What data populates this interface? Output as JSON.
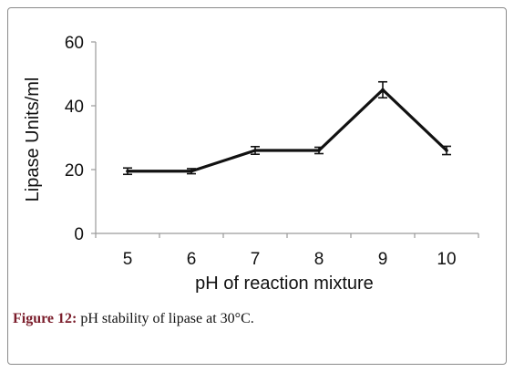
{
  "chart_data": {
    "type": "line",
    "x": [
      5,
      6,
      7,
      8,
      9,
      10
    ],
    "series": [
      {
        "values": [
          19.5,
          19.5,
          26,
          26,
          45,
          26
        ],
        "errors": [
          1.0,
          0.8,
          1.2,
          1.0,
          2.5,
          1.3
        ]
      }
    ],
    "xlabel": "pH of reaction mixture",
    "ylabel": "Lipase Units/ml",
    "ylim": [
      0,
      60
    ],
    "yticks": [
      0,
      20,
      40,
      60
    ],
    "xticks": [
      "5",
      "6",
      "7",
      "8",
      "9",
      "10"
    ],
    "grid": false,
    "legend": "none",
    "line_color": "#111111"
  },
  "caption": {
    "label": "Figure 12:",
    "text": " pH stability of lipase at 30°C."
  }
}
